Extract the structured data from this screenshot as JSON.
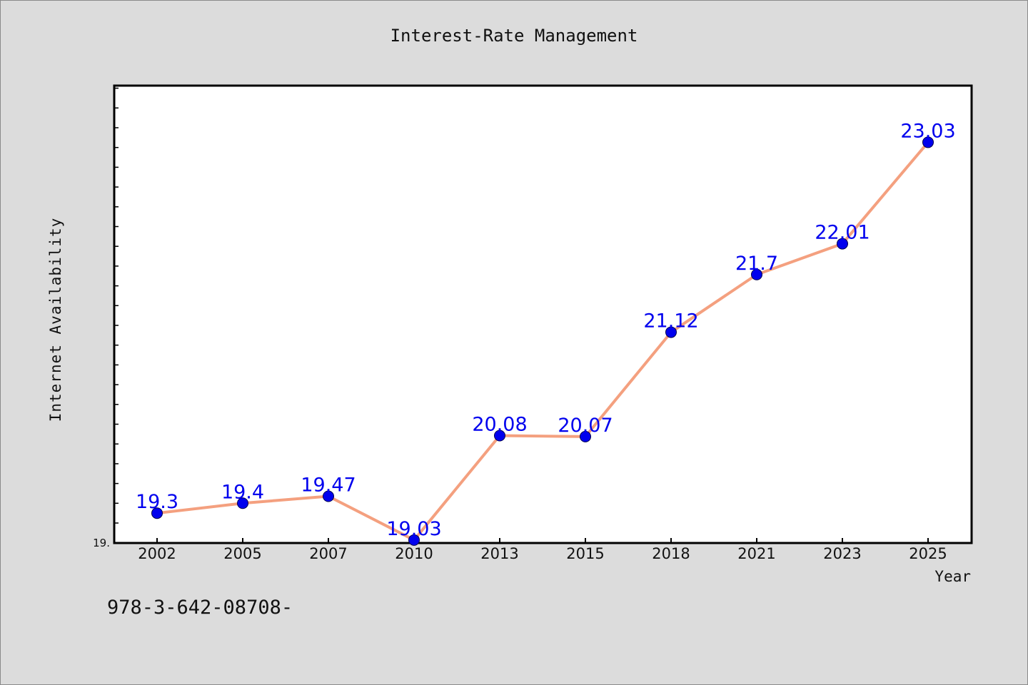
{
  "chart_data": {
    "type": "line",
    "title": "Interest-Rate Management",
    "xlabel": "Year",
    "ylabel": "Internet Availability",
    "categories": [
      "2002",
      "2005",
      "2007",
      "2010",
      "2013",
      "2015",
      "2018",
      "2021",
      "2023",
      "2025"
    ],
    "series": [
      {
        "values": [
          19.3,
          19.4,
          19.47,
          19.03,
          20.08,
          20.07,
          21.12,
          21.7,
          22.01,
          23.03
        ],
        "data_labels": [
          "19.3",
          "19.4",
          "19.47",
          "19.03",
          "20.08",
          "20.07",
          "21.12",
          "21.7",
          "22.01",
          "23.03"
        ]
      }
    ],
    "ylim": [
      19.0,
      23.6
    ],
    "y_tick_label": "19.",
    "grid": false,
    "legend": "none",
    "colors": {
      "line": "#f4a07f",
      "marker": "#0000ee",
      "data_label": "#0000ee",
      "plot_background": "#ffffff",
      "page_background": "#dcdcdc"
    }
  },
  "footnote": "978-3-642-08708-"
}
